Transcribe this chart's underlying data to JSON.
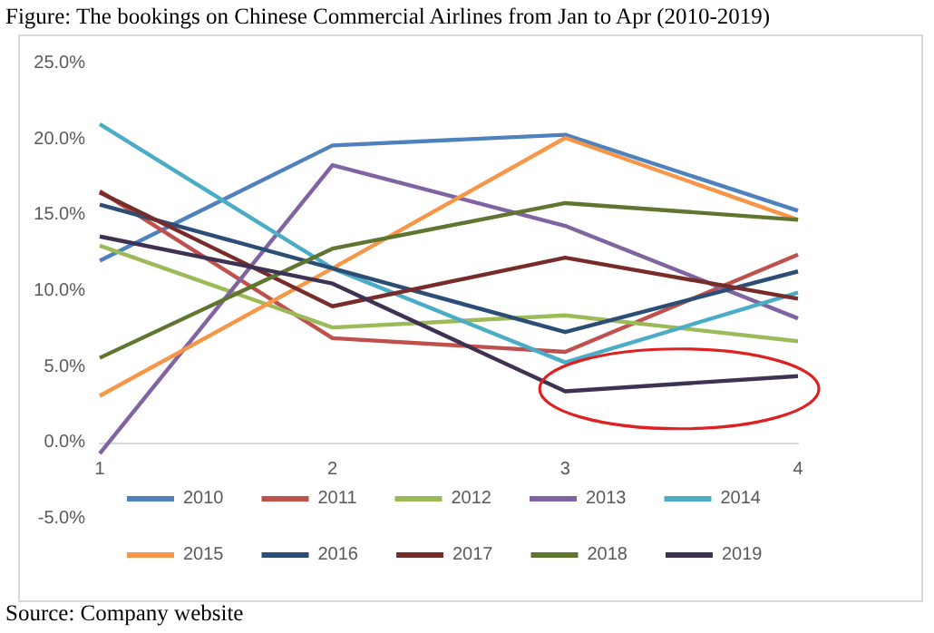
{
  "chart_data": {
    "type": "line",
    "title": "Figure: The bookings on Chinese Commercial Airlines from Jan to Apr (2010-2019)",
    "categories": [
      "1",
      "2",
      "3",
      "4"
    ],
    "series": [
      {
        "name": "2010",
        "color": "#4f81bd",
        "values": [
          12.0,
          19.6,
          20.3,
          15.3
        ]
      },
      {
        "name": "2011",
        "color": "#c0504d",
        "values": [
          16.6,
          6.9,
          6.0,
          12.4
        ]
      },
      {
        "name": "2012",
        "color": "#9bbb59",
        "values": [
          13.0,
          7.6,
          8.4,
          6.7
        ]
      },
      {
        "name": "2013",
        "color": "#8064a2",
        "values": [
          -0.7,
          18.3,
          14.3,
          8.2
        ]
      },
      {
        "name": "2014",
        "color": "#4bacc6",
        "values": [
          21.0,
          11.5,
          5.3,
          9.9
        ]
      },
      {
        "name": "2015",
        "color": "#f79646",
        "values": [
          3.1,
          11.5,
          20.1,
          14.7
        ]
      },
      {
        "name": "2016",
        "color": "#2c4d75",
        "values": [
          15.7,
          11.5,
          7.3,
          11.3
        ]
      },
      {
        "name": "2017",
        "color": "#772c2a",
        "values": [
          16.5,
          9.0,
          12.2,
          9.5
        ]
      },
      {
        "name": "2018",
        "color": "#5f7530",
        "values": [
          5.6,
          12.8,
          15.8,
          14.7
        ]
      },
      {
        "name": "2019",
        "color": "#3f3151",
        "values": [
          13.6,
          10.5,
          3.4,
          4.4
        ]
      }
    ],
    "ylim": [
      -5,
      25
    ],
    "yticks": [
      {
        "value": -5,
        "label": "-5.0%"
      },
      {
        "value": 0,
        "label": "0.0%"
      },
      {
        "value": 5,
        "label": "5.0%"
      },
      {
        "value": 10,
        "label": "10.0%"
      },
      {
        "value": 15,
        "label": "15.0%"
      },
      {
        "value": 20,
        "label": "20.0%"
      },
      {
        "value": 25,
        "label": "25.0%"
      }
    ],
    "grid": false,
    "legend": "bottom",
    "marker": "none",
    "line_style": "solid",
    "annotations": [
      "Source: Company website"
    ]
  }
}
